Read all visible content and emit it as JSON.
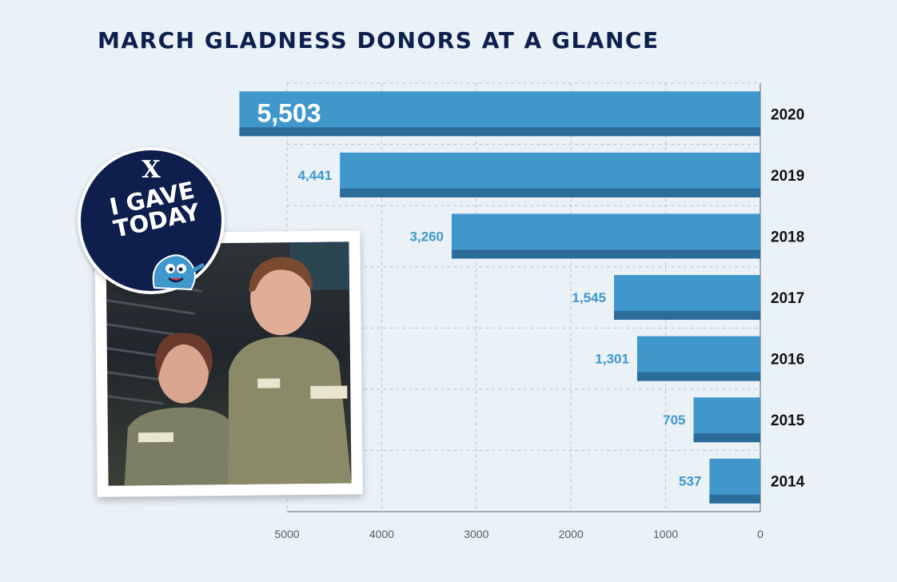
{
  "title": "MARCH GLADNESS DONORS AT A GLANCE",
  "badge": {
    "logo": "X",
    "line1": "I GAVE",
    "line2": "TODAY",
    "mascot_icon": "blue-mascot-icon"
  },
  "photo": {
    "description_icon": "photo-two-people-in-army-uniform"
  },
  "colors": {
    "bar_top": "#3f97cc",
    "bar_bottom": "#2c6c98",
    "title": "#0d1f4e",
    "value_label": "#3f97cc",
    "background": "#eaf2f8"
  },
  "chart_data": {
    "type": "bar",
    "orientation": "horizontal",
    "direction": "right-to-left",
    "title": "MARCH GLADNESS DONORS AT A GLANCE",
    "categories": [
      "2020",
      "2019",
      "2018",
      "2017",
      "2016",
      "2015",
      "2014"
    ],
    "values": [
      5503,
      4441,
      3260,
      1545,
      1301,
      705,
      537
    ],
    "value_labels": [
      "5,503",
      "4,441",
      "3,260",
      "1,545",
      "1,301",
      "705",
      "537"
    ],
    "xlim": [
      5000,
      0
    ],
    "x_ticks": [
      5000,
      4000,
      3000,
      2000,
      1000,
      0
    ],
    "x_tick_labels": [
      "5000",
      "4000",
      "3000",
      "2000",
      "1000",
      "0"
    ],
    "grid": true,
    "xlabel": "",
    "ylabel": ""
  }
}
